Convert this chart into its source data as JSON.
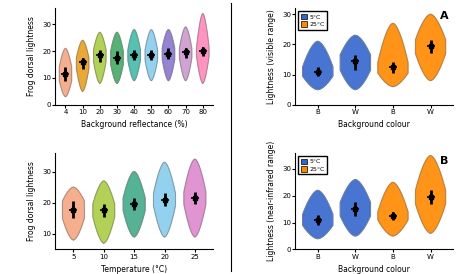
{
  "top_left": {
    "xlabel": "Background reflectance (%)",
    "ylabel": "Frog dorsal lightness",
    "categories": [
      "4",
      "10",
      "20",
      "30",
      "40",
      "50",
      "60",
      "70",
      "80"
    ],
    "colors": [
      "#F4A582",
      "#E8A020",
      "#AACC44",
      "#44AA66",
      "#44BBAA",
      "#88CCEE",
      "#8877CC",
      "#CC99CC",
      "#FF88BB"
    ],
    "means": [
      11.5,
      16.0,
      18.5,
      17.5,
      18.5,
      18.5,
      19.0,
      19.5,
      20.0
    ],
    "q1": [
      9.0,
      13.5,
      16.0,
      15.0,
      16.5,
      16.5,
      17.0,
      17.5,
      18.0
    ],
    "q3": [
      14.0,
      17.5,
      20.5,
      20.0,
      20.5,
      20.5,
      21.0,
      21.0,
      21.5
    ],
    "mins": [
      3.0,
      5.0,
      8.0,
      8.0,
      9.0,
      9.0,
      9.0,
      9.0,
      8.0
    ],
    "maxs": [
      21.0,
      24.0,
      27.0,
      27.0,
      28.0,
      28.0,
      28.0,
      29.0,
      34.0
    ],
    "ylim": [
      0,
      36
    ],
    "yticks": [
      0,
      10,
      20,
      30
    ]
  },
  "bottom_left": {
    "xlabel": "Temperature (°C)",
    "ylabel": "Frog dorsal lightness",
    "categories": [
      "5",
      "10",
      "15",
      "20",
      "25"
    ],
    "colors": [
      "#F4A582",
      "#AACC44",
      "#44AA88",
      "#88CCEE",
      "#DD88CC"
    ],
    "means": [
      17.5,
      17.5,
      19.5,
      21.0,
      21.5
    ],
    "q1": [
      15.0,
      15.5,
      17.5,
      19.0,
      19.5
    ],
    "q3": [
      20.5,
      19.5,
      21.5,
      23.0,
      23.5
    ],
    "mins": [
      8.0,
      7.0,
      9.0,
      9.0,
      9.0
    ],
    "maxs": [
      25.0,
      27.0,
      30.0,
      33.0,
      34.0
    ],
    "ylim": [
      5,
      36
    ],
    "yticks": [
      10,
      20,
      30
    ]
  },
  "top_right": {
    "title": "A",
    "xlabel": "Background colour",
    "ylabel": "Lightness (visible range)",
    "categories": [
      "B",
      "W",
      "B",
      "W"
    ],
    "colors": [
      "#3366CC",
      "#3366CC",
      "#FF8800",
      "#FF8800"
    ],
    "means": [
      11.0,
      14.5,
      12.5,
      19.5
    ],
    "q1": [
      9.5,
      11.5,
      10.5,
      17.0
    ],
    "q3": [
      12.5,
      16.5,
      14.0,
      21.5
    ],
    "mins": [
      5.0,
      5.0,
      6.0,
      8.0
    ],
    "maxs": [
      21.0,
      23.0,
      27.0,
      30.0
    ],
    "ylim": [
      0,
      32
    ],
    "yticks": [
      0,
      10,
      20,
      30
    ],
    "legend": [
      {
        "label": "5°C",
        "color": "#3366CC"
      },
      {
        "label": "25°C",
        "color": "#FF8800"
      }
    ]
  },
  "bottom_right": {
    "title": "B",
    "xlabel": "Background colour",
    "ylabel": "Lightness (near-infrared range)",
    "categories": [
      "B",
      "W",
      "B",
      "W"
    ],
    "colors": [
      "#3366CC",
      "#3366CC",
      "#FF8800",
      "#FF8800"
    ],
    "means": [
      11.0,
      15.0,
      12.5,
      19.5
    ],
    "q1": [
      9.0,
      12.5,
      11.0,
      17.0
    ],
    "q3": [
      13.0,
      17.5,
      14.0,
      22.0
    ],
    "mins": [
      4.0,
      5.0,
      5.0,
      6.0
    ],
    "maxs": [
      22.0,
      26.0,
      25.0,
      35.0
    ],
    "ylim": [
      0,
      36
    ],
    "yticks": [
      0,
      10,
      20,
      30
    ],
    "legend": [
      {
        "label": "5°C",
        "color": "#3366CC"
      },
      {
        "label": "25°C",
        "color": "#FF8800"
      }
    ]
  }
}
